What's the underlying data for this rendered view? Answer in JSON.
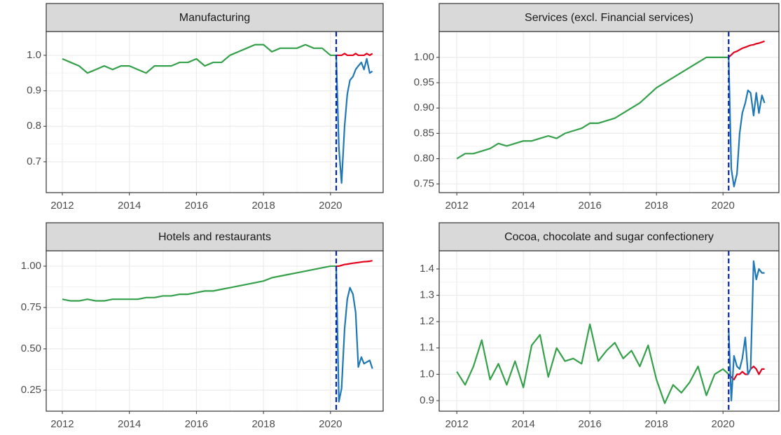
{
  "chart_data": [
    {
      "type": "line",
      "title": "Manufacturing",
      "xlim": [
        2011.52,
        2021.57
      ],
      "xticks": [
        2012,
        2014,
        2016,
        2018,
        2020
      ],
      "ylim": [
        0.613,
        1.067
      ],
      "yticks": [
        0.7,
        0.8,
        0.9,
        {
          "value": 1,
          "label": "1.0"
        }
      ],
      "grid": true,
      "vline": 2020.17,
      "vline_color": "#0022cc",
      "series": [
        {
          "color": "#35a04a",
          "x": [
            2012,
            2012.25,
            2012.5,
            2012.75,
            2013,
            2013.25,
            2013.5,
            2013.75,
            2014,
            2014.25,
            2014.5,
            2014.75,
            2015,
            2015.25,
            2015.5,
            2015.75,
            2016,
            2016.25,
            2016.5,
            2016.75,
            2017,
            2017.25,
            2017.5,
            2017.75,
            2018,
            2018.25,
            2018.5,
            2018.75,
            2019,
            2019.25,
            2019.5,
            2019.75,
            2020,
            2020.17
          ],
          "values": [
            0.99,
            0.98,
            0.97,
            0.95,
            0.96,
            0.97,
            0.96,
            0.97,
            0.97,
            0.96,
            0.95,
            0.97,
            0.97,
            0.97,
            0.98,
            0.98,
            0.99,
            0.97,
            0.98,
            0.98,
            1.0,
            1.01,
            1.02,
            1.03,
            1.03,
            1.01,
            1.02,
            1.02,
            1.02,
            1.03,
            1.02,
            1.02,
            1.0,
            1.0
          ]
        },
        {
          "color": "#e3001b",
          "x": [
            2020.17,
            2020.25,
            2020.33,
            2020.42,
            2020.5,
            2020.58,
            2020.67,
            2020.75,
            2020.83,
            2020.92,
            2021,
            2021.08,
            2021.17,
            2021.25
          ],
          "values": [
            1.0,
            1.0,
            1.0,
            1.005,
            1.0,
            1.0,
            1.0,
            1.005,
            1.0,
            1.0,
            1.0,
            1.005,
            1.0,
            1.005
          ]
        },
        {
          "color": "#1f78b4",
          "x": [
            2020.17,
            2020.25,
            2020.33,
            2020.42,
            2020.5,
            2020.58,
            2020.67,
            2020.75,
            2020.83,
            2020.92,
            2021,
            2021.08,
            2021.17,
            2021.25
          ],
          "values": [
            1.0,
            0.74,
            0.64,
            0.8,
            0.89,
            0.93,
            0.94,
            0.96,
            0.97,
            0.98,
            0.96,
            0.99,
            0.95,
            0.955
          ]
        }
      ]
    },
    {
      "type": "line",
      "title": "Services (excl. Financial services)",
      "xlim": [
        2011.47,
        2021.68
      ],
      "xticks": [
        2012,
        2014,
        2016,
        2018,
        2020
      ],
      "ylim": [
        0.733,
        1.051
      ],
      "yticks": [
        0.75,
        {
          "value": 0.8,
          "label": "0.80"
        },
        0.85,
        {
          "value": 0.9,
          "label": "0.90"
        },
        0.95,
        {
          "value": 1,
          "label": "1.00"
        }
      ],
      "grid": true,
      "vline": 2020.17,
      "vline_color": "#0022cc",
      "series": [
        {
          "color": "#35a04a",
          "x": [
            2012,
            2012.25,
            2012.5,
            2012.75,
            2013,
            2013.25,
            2013.5,
            2013.75,
            2014,
            2014.25,
            2014.5,
            2014.75,
            2015,
            2015.25,
            2015.5,
            2015.75,
            2016,
            2016.25,
            2016.5,
            2016.75,
            2017,
            2017.25,
            2017.5,
            2017.75,
            2018,
            2018.25,
            2018.5,
            2018.75,
            2019,
            2019.25,
            2019.5,
            2019.75,
            2020,
            2020.17
          ],
          "values": [
            0.8,
            0.81,
            0.81,
            0.815,
            0.82,
            0.83,
            0.825,
            0.83,
            0.835,
            0.835,
            0.84,
            0.845,
            0.84,
            0.85,
            0.855,
            0.86,
            0.87,
            0.87,
            0.875,
            0.88,
            0.89,
            0.9,
            0.91,
            0.925,
            0.94,
            0.95,
            0.96,
            0.97,
            0.98,
            0.99,
            1.0,
            1.0,
            1.0,
            1.0
          ]
        },
        {
          "color": "#e3001b",
          "x": [
            2020.17,
            2020.25,
            2020.33,
            2020.42,
            2020.5,
            2020.58,
            2020.67,
            2020.75,
            2020.83,
            2020.92,
            2021,
            2021.08,
            2021.17,
            2021.25
          ],
          "values": [
            1.0,
            1.005,
            1.01,
            1.012,
            1.015,
            1.018,
            1.02,
            1.022,
            1.024,
            1.025,
            1.027,
            1.028,
            1.03,
            1.032
          ]
        },
        {
          "color": "#1f78b4",
          "x": [
            2020.17,
            2020.25,
            2020.33,
            2020.42,
            2020.5,
            2020.58,
            2020.67,
            2020.75,
            2020.83,
            2020.92,
            2021,
            2021.08,
            2021.17,
            2021.25
          ],
          "values": [
            1.0,
            0.78,
            0.745,
            0.77,
            0.85,
            0.89,
            0.91,
            0.935,
            0.93,
            0.885,
            0.93,
            0.89,
            0.925,
            0.91
          ]
        }
      ]
    },
    {
      "type": "line",
      "title": "Hotels and restaurants",
      "xlim": [
        2011.52,
        2021.57
      ],
      "xticks": [
        2012,
        2014,
        2016,
        2018,
        2020
      ],
      "ylim": [
        0.123,
        1.093
      ],
      "yticks": [
        0.25,
        {
          "value": 0.5,
          "label": "0.50"
        },
        0.75,
        {
          "value": 1,
          "label": "1.00"
        }
      ],
      "grid": true,
      "vline": 2020.17,
      "vline_color": "#0022cc",
      "series": [
        {
          "color": "#35a04a",
          "x": [
            2012,
            2012.25,
            2012.5,
            2012.75,
            2013,
            2013.25,
            2013.5,
            2013.75,
            2014,
            2014.25,
            2014.5,
            2014.75,
            2015,
            2015.25,
            2015.5,
            2015.75,
            2016,
            2016.25,
            2016.5,
            2016.75,
            2017,
            2017.25,
            2017.5,
            2017.75,
            2018,
            2018.25,
            2018.5,
            2018.75,
            2019,
            2019.25,
            2019.5,
            2019.75,
            2020,
            2020.17
          ],
          "values": [
            0.8,
            0.79,
            0.79,
            0.8,
            0.79,
            0.79,
            0.8,
            0.8,
            0.8,
            0.8,
            0.81,
            0.81,
            0.82,
            0.82,
            0.83,
            0.83,
            0.84,
            0.85,
            0.85,
            0.86,
            0.87,
            0.88,
            0.89,
            0.9,
            0.91,
            0.93,
            0.94,
            0.95,
            0.96,
            0.97,
            0.98,
            0.99,
            1.0,
            1.0
          ]
        },
        {
          "color": "#e3001b",
          "x": [
            2020.17,
            2020.25,
            2020.33,
            2020.42,
            2020.5,
            2020.58,
            2020.67,
            2020.75,
            2020.83,
            2020.92,
            2021,
            2021.08,
            2021.17,
            2021.25
          ],
          "values": [
            1.0,
            1.0,
            1.005,
            1.01,
            1.012,
            1.015,
            1.018,
            1.02,
            1.022,
            1.025,
            1.027,
            1.028,
            1.03,
            1.033
          ]
        },
        {
          "color": "#1f78b4",
          "x": [
            2020.17,
            2020.25,
            2020.33,
            2020.42,
            2020.5,
            2020.58,
            2020.67,
            2020.75,
            2020.83,
            2020.92,
            2021,
            2021.08,
            2021.17,
            2021.25
          ],
          "values": [
            1.0,
            0.18,
            0.26,
            0.62,
            0.8,
            0.87,
            0.83,
            0.72,
            0.39,
            0.45,
            0.41,
            0.42,
            0.43,
            0.38
          ]
        }
      ]
    },
    {
      "type": "line",
      "title": "Cocoa, chocolate and sugar confectionery",
      "xlim": [
        2011.47,
        2021.68
      ],
      "xticks": [
        2012,
        2014,
        2016,
        2018,
        2020
      ],
      "ylim": [
        0.86,
        1.469
      ],
      "yticks": [
        0.9,
        {
          "value": 1,
          "label": "1.0"
        },
        1.1,
        1.2,
        1.3,
        1.4
      ],
      "grid": true,
      "vline": 2020.17,
      "vline_color": "#0022cc",
      "series": [
        {
          "color": "#35a04a",
          "x": [
            2012,
            2012.25,
            2012.5,
            2012.75,
            2013,
            2013.25,
            2013.5,
            2013.75,
            2014,
            2014.25,
            2014.5,
            2014.75,
            2015,
            2015.25,
            2015.5,
            2015.75,
            2016,
            2016.25,
            2016.5,
            2016.75,
            2017,
            2017.25,
            2017.5,
            2017.75,
            2018,
            2018.25,
            2018.5,
            2018.75,
            2019,
            2019.25,
            2019.5,
            2019.75,
            2020,
            2020.17
          ],
          "values": [
            1.01,
            0.96,
            1.03,
            1.13,
            0.98,
            1.04,
            0.96,
            1.05,
            0.95,
            1.11,
            1.15,
            0.99,
            1.1,
            1.05,
            1.06,
            1.04,
            1.19,
            1.05,
            1.09,
            1.12,
            1.06,
            1.09,
            1.03,
            1.11,
            0.98,
            0.89,
            0.96,
            0.93,
            0.97,
            1.03,
            0.92,
            1.0,
            1.02,
            1.0
          ]
        },
        {
          "color": "#e3001b",
          "x": [
            2020.17,
            2020.25,
            2020.33,
            2020.42,
            2020.5,
            2020.58,
            2020.67,
            2020.75,
            2020.83,
            2020.92,
            2021,
            2021.08,
            2021.17,
            2021.25
          ],
          "values": [
            1.0,
            0.99,
            0.98,
            1.0,
            1.0,
            1.01,
            1.0,
            1.0,
            1.02,
            1.03,
            1.02,
            1.0,
            1.02,
            1.02
          ]
        },
        {
          "color": "#1f78b4",
          "x": [
            2020.17,
            2020.25,
            2020.33,
            2020.42,
            2020.5,
            2020.58,
            2020.67,
            2020.75,
            2020.83,
            2020.92,
            2021,
            2021.08,
            2021.17,
            2021.25
          ],
          "values": [
            1.17,
            0.9,
            1.07,
            1.03,
            1.02,
            1.06,
            1.14,
            1.0,
            1.02,
            1.43,
            1.36,
            1.4,
            1.385,
            1.385
          ]
        }
      ]
    }
  ]
}
